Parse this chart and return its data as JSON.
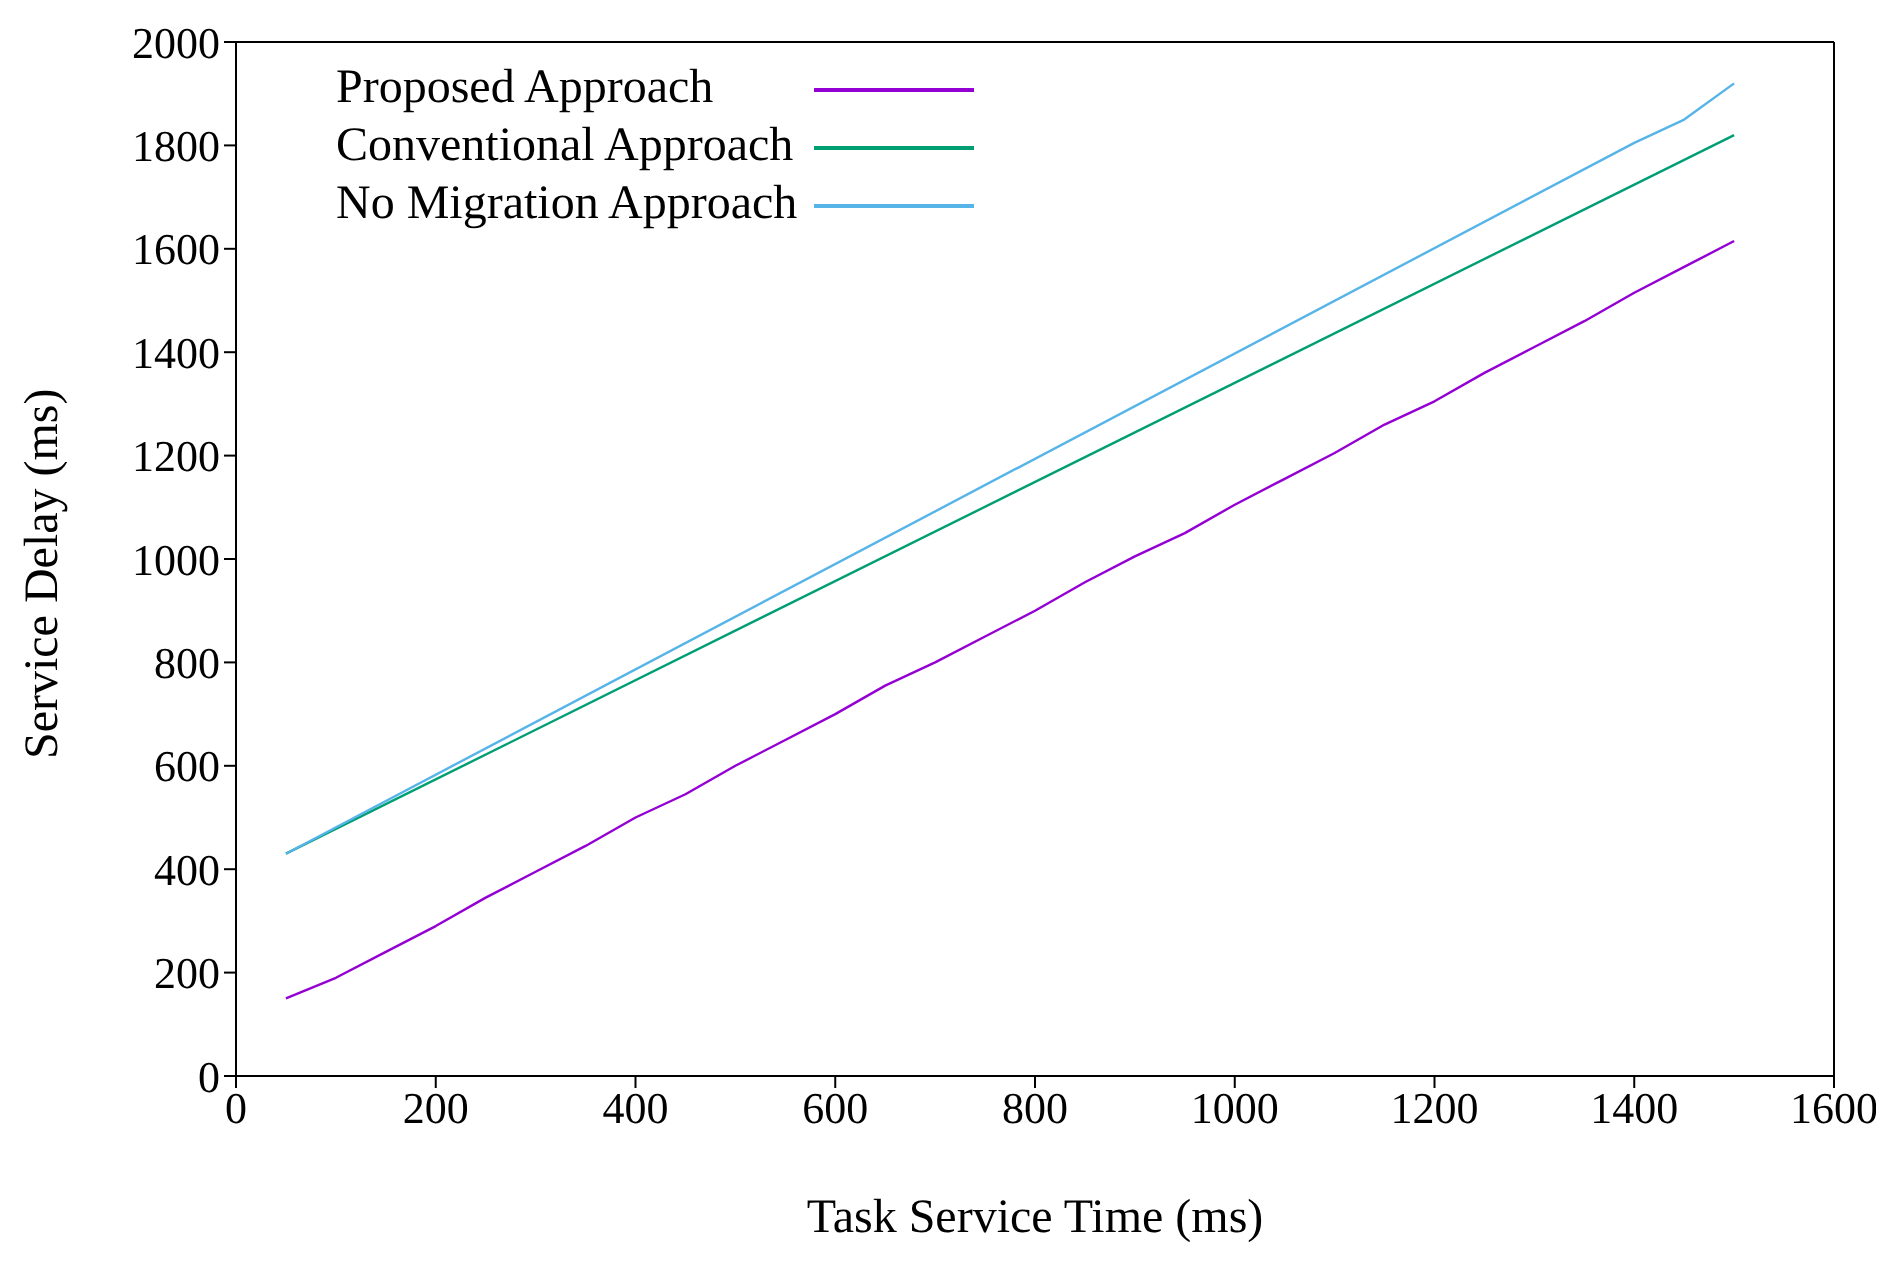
{
  "chart_data": {
    "type": "line",
    "xlabel": "Task Service Time (ms)",
    "ylabel": "Service Delay (ms)",
    "xlim": [
      0,
      1600
    ],
    "xticks": [
      0,
      200,
      400,
      600,
      800,
      1000,
      1200,
      1400,
      1600
    ],
    "ylim": [
      0,
      2000
    ],
    "yticks": [
      0,
      200,
      400,
      600,
      800,
      1000,
      1200,
      1400,
      1600,
      1800,
      2000
    ],
    "grid": false,
    "legend": "top left",
    "marker": "none",
    "line_style": "solid",
    "series": [
      {
        "name": "Proposed Approach",
        "color": "#9400d3",
        "x": [
          50,
          100,
          150,
          200,
          250,
          300,
          350,
          400,
          450,
          500,
          550,
          600,
          650,
          700,
          750,
          800,
          850,
          900,
          950,
          1000,
          1050,
          1100,
          1150,
          1200,
          1250,
          1300,
          1350,
          1400,
          1450,
          1500
        ],
        "values": [
          150,
          190,
          240,
          290,
          345,
          395,
          445,
          500,
          545,
          600,
          650,
          700,
          755,
          800,
          850,
          900,
          955,
          1005,
          1050,
          1105,
          1155,
          1205,
          1260,
          1305,
          1360,
          1410,
          1460,
          1515,
          1565,
          1615
        ]
      },
      {
        "name": "Conventional Approach",
        "color": "#009e73",
        "x": [
          50,
          1500
        ],
        "values": [
          430,
          1820
        ]
      },
      {
        "name": "No Migration Approach",
        "color": "#56b4e9",
        "x": [
          50,
          1400,
          1450,
          1500
        ],
        "values": [
          430,
          1805,
          1850,
          1920
        ]
      }
    ]
  }
}
